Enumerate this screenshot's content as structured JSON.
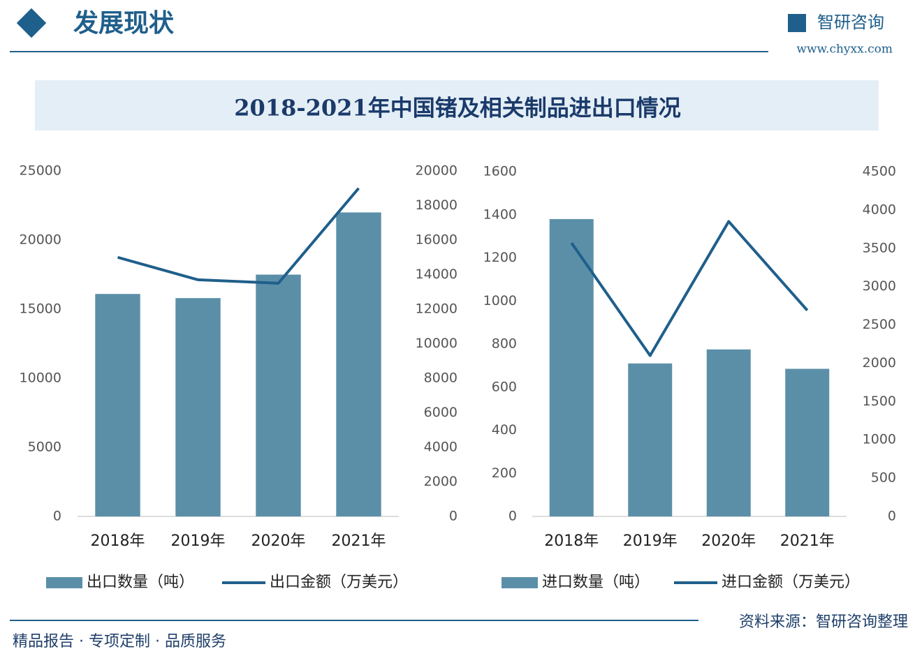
{
  "header": {
    "section": "发展现状",
    "brand": "智研咨询",
    "website": "www.chyxx.com",
    "title": "2018-2021年中国锗及相关制品进出口情况"
  },
  "footer": {
    "slogan": "精品报告 · 专项定制 · 品质服务",
    "source": "资料来源：智研咨询整理"
  },
  "chart_data": [
    {
      "type": "combo",
      "categories": [
        "2018年",
        "2019年",
        "2020年",
        "2021年"
      ],
      "series": [
        {
          "name": "出口数量（吨）",
          "type": "bar",
          "color": "#5b8fa8",
          "values": [
            16100,
            15800,
            17500,
            22000
          ]
        },
        {
          "name": "出口金额（万美元）",
          "type": "line",
          "axis": "y2",
          "color": "#1f5f8b",
          "values": [
            15000,
            13700,
            13500,
            19000
          ]
        }
      ],
      "ylim": [
        0,
        25000
      ],
      "yticks": [
        0,
        5000,
        10000,
        15000,
        20000,
        25000
      ],
      "y2lim": [
        0,
        20000
      ],
      "y2ticks": [
        0,
        2000,
        4000,
        6000,
        8000,
        10000,
        12000,
        14000,
        16000,
        18000,
        20000
      ],
      "legend": "bottom"
    },
    {
      "type": "combo",
      "categories": [
        "2018年",
        "2019年",
        "2020年",
        "2021年"
      ],
      "series": [
        {
          "name": "进口数量（吨）",
          "type": "bar",
          "color": "#5b8fa8",
          "values": [
            1380,
            710,
            775,
            685
          ]
        },
        {
          "name": "进口金额（万美元）",
          "type": "line",
          "axis": "y2",
          "color": "#1f5f8b",
          "values": [
            3570,
            2100,
            3850,
            2690
          ]
        }
      ],
      "ylim": [
        0,
        1600
      ],
      "yticks": [
        0,
        200,
        400,
        600,
        800,
        1000,
        1200,
        1400,
        1600
      ],
      "y2lim": [
        0,
        4500
      ],
      "y2ticks": [
        0,
        500,
        1000,
        1500,
        2000,
        2500,
        3000,
        3500,
        4000,
        4500
      ],
      "legend": "bottom"
    }
  ]
}
